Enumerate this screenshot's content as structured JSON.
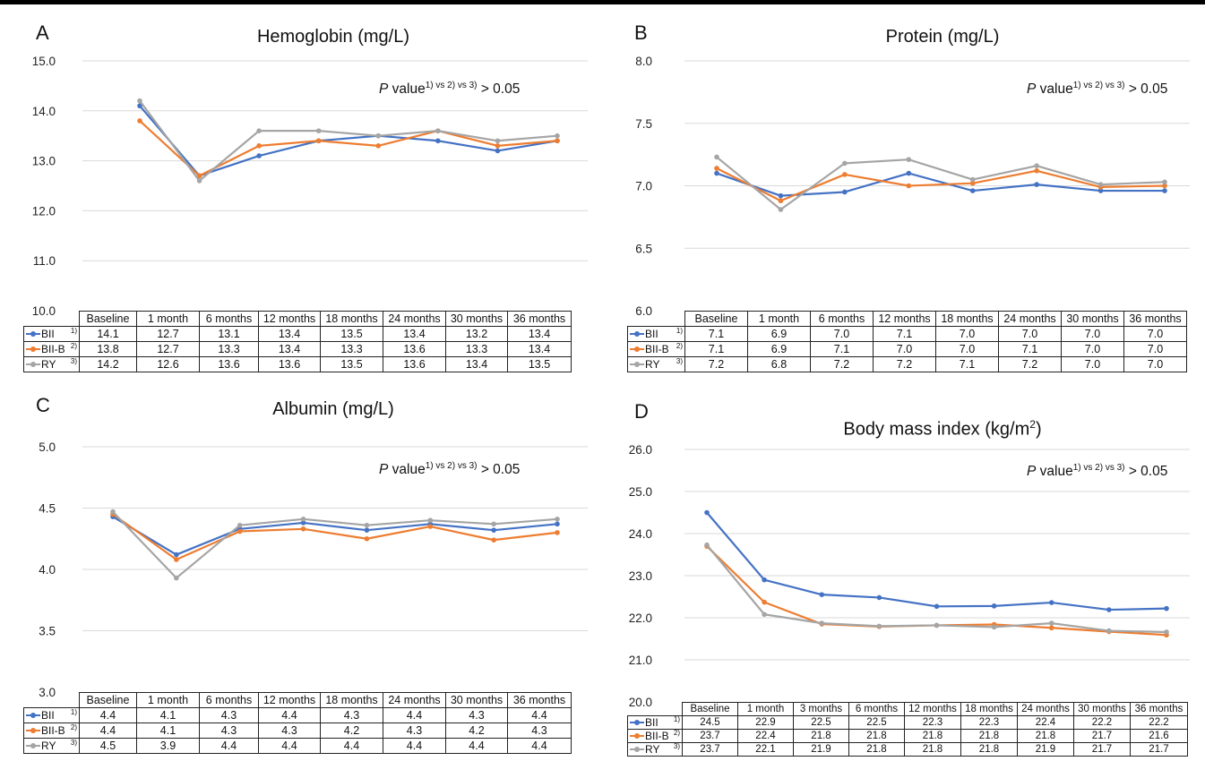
{
  "colors": {
    "BII": "#4472C4",
    "BII-B": "#ED7D31",
    "RY": "#A5A5A5"
  },
  "chart_data": [
    {
      "type": "line",
      "panel": "A",
      "title": "Hemoglobin (mg/L)",
      "annotation_p": "P",
      "annotation_value": "value",
      "annotation_sup": "1) vs 2)  vs 3)",
      "annotation_tail": " > 0.05",
      "categories": [
        "Baseline",
        "1 month",
        "6 months",
        "12 months",
        "18 months",
        "24 months",
        "30 months",
        "36 months"
      ],
      "ylim": [
        10.0,
        15.0
      ],
      "yticks": [
        "10.0",
        "11.0",
        "12.0",
        "13.0",
        "14.0",
        "15.0"
      ],
      "grid": true,
      "series": [
        {
          "name": "BII",
          "sup": "1)",
          "values": [
            14.1,
            12.7,
            13.1,
            13.4,
            13.5,
            13.4,
            13.2,
            13.4
          ],
          "labels": [
            "14.1",
            "12.7",
            "13.1",
            "13.4",
            "13.5",
            "13.4",
            "13.2",
            "13.4"
          ]
        },
        {
          "name": "BII-B",
          "sup": "2)",
          "values": [
            13.8,
            12.7,
            13.3,
            13.4,
            13.3,
            13.6,
            13.3,
            13.4
          ],
          "labels": [
            "13.8",
            "12.7",
            "13.3",
            "13.4",
            "13.3",
            "13.6",
            "13.3",
            "13.4"
          ]
        },
        {
          "name": "RY",
          "sup": "3)",
          "values": [
            14.2,
            12.6,
            13.6,
            13.6,
            13.5,
            13.6,
            13.4,
            13.5
          ],
          "labels": [
            "14.2",
            "12.6",
            "13.6",
            "13.6",
            "13.5",
            "13.6",
            "13.4",
            "13.5"
          ]
        }
      ]
    },
    {
      "type": "line",
      "panel": "B",
      "title": "Protein (mg/L)",
      "annotation_p": "P",
      "annotation_value": "value",
      "annotation_sup": "1) vs 2)  vs 3)",
      "annotation_tail": " > 0.05",
      "categories": [
        "Baseline",
        "1 month",
        "6 months",
        "12 months",
        "18 months",
        "24 months",
        "30 months",
        "36 months"
      ],
      "ylim": [
        6.0,
        8.0
      ],
      "yticks": [
        "6.0",
        "6.5",
        "7.0",
        "7.5",
        "8.0"
      ],
      "grid": true,
      "series": [
        {
          "name": "BII",
          "sup": "1)",
          "values": [
            7.1,
            6.92,
            6.95,
            7.1,
            6.96,
            7.01,
            6.96,
            6.96
          ],
          "labels": [
            "7.1",
            "6.9",
            "7.0",
            "7.1",
            "7.0",
            "7.0",
            "7.0",
            "7.0"
          ]
        },
        {
          "name": "BII-B",
          "sup": "2)",
          "values": [
            7.14,
            6.88,
            7.09,
            7.0,
            7.02,
            7.12,
            6.99,
            7.0
          ],
          "labels": [
            "7.1",
            "6.9",
            "7.1",
            "7.0",
            "7.0",
            "7.1",
            "7.0",
            "7.0"
          ]
        },
        {
          "name": "RY",
          "sup": "3)",
          "values": [
            7.23,
            6.81,
            7.18,
            7.21,
            7.05,
            7.16,
            7.01,
            7.03
          ],
          "labels": [
            "7.2",
            "6.8",
            "7.2",
            "7.2",
            "7.1",
            "7.2",
            "7.0",
            "7.0"
          ]
        }
      ]
    },
    {
      "type": "line",
      "panel": "C",
      "title": "Albumin (mg/L)",
      "annotation_p": "P",
      "annotation_value": "value",
      "annotation_sup": "1) vs 2)  vs 3)",
      "annotation_tail": " > 0.05",
      "categories": [
        "Baseline",
        "1 month",
        "6 months",
        "12 months",
        "18 months",
        "24 months",
        "30 months",
        "36 months"
      ],
      "ylim": [
        3.0,
        5.0
      ],
      "yticks": [
        "3.0",
        "3.5",
        "4.0",
        "4.5",
        "5.0"
      ],
      "grid": true,
      "series": [
        {
          "name": "BII",
          "sup": "1)",
          "values": [
            4.43,
            4.12,
            4.33,
            4.38,
            4.32,
            4.37,
            4.32,
            4.37
          ],
          "labels": [
            "4.4",
            "4.1",
            "4.3",
            "4.4",
            "4.3",
            "4.4",
            "4.3",
            "4.4"
          ]
        },
        {
          "name": "BII-B",
          "sup": "2)",
          "values": [
            4.45,
            4.08,
            4.31,
            4.33,
            4.25,
            4.35,
            4.24,
            4.3
          ],
          "labels": [
            "4.4",
            "4.1",
            "4.3",
            "4.3",
            "4.2",
            "4.3",
            "4.2",
            "4.3"
          ]
        },
        {
          "name": "RY",
          "sup": "3)",
          "values": [
            4.47,
            3.93,
            4.36,
            4.41,
            4.36,
            4.4,
            4.37,
            4.41
          ],
          "labels": [
            "4.5",
            "3.9",
            "4.4",
            "4.4",
            "4.4",
            "4.4",
            "4.4",
            "4.4"
          ]
        }
      ]
    },
    {
      "type": "line",
      "panel": "D",
      "title": "Body mass index (kg/m",
      "title_sup": "2",
      "title_tail": ")",
      "annotation_p": "P",
      "annotation_value": "value",
      "annotation_sup": "1) vs 2)  vs 3)",
      "annotation_tail": " > 0.05",
      "categories": [
        "Baseline",
        "1 month",
        "3 months",
        "6 months",
        "12 months",
        "18 months",
        "24 months",
        "30 months",
        "36 months"
      ],
      "ylim": [
        20.0,
        26.0
      ],
      "yticks": [
        "20.0",
        "21.0",
        "22.0",
        "23.0",
        "24.0",
        "25.0",
        "26.0"
      ],
      "grid": true,
      "series": [
        {
          "name": "BII",
          "sup": "1)",
          "values": [
            24.5,
            22.9,
            22.55,
            22.48,
            22.27,
            22.28,
            22.36,
            22.19,
            22.22
          ],
          "labels": [
            "24.5",
            "22.9",
            "22.5",
            "22.5",
            "22.3",
            "22.3",
            "22.4",
            "22.2",
            "22.2"
          ]
        },
        {
          "name": "BII-B",
          "sup": "2)",
          "values": [
            23.7,
            22.37,
            21.85,
            21.79,
            21.82,
            21.84,
            21.76,
            21.67,
            21.59
          ],
          "labels": [
            "23.7",
            "22.4",
            "21.8",
            "21.8",
            "21.8",
            "21.8",
            "21.8",
            "21.7",
            "21.6"
          ]
        },
        {
          "name": "RY",
          "sup": "3)",
          "values": [
            23.73,
            22.08,
            21.87,
            21.8,
            21.82,
            21.78,
            21.87,
            21.69,
            21.66
          ],
          "labels": [
            "23.7",
            "22.1",
            "21.9",
            "21.8",
            "21.8",
            "21.8",
            "21.9",
            "21.7",
            "21.7"
          ]
        }
      ]
    }
  ]
}
